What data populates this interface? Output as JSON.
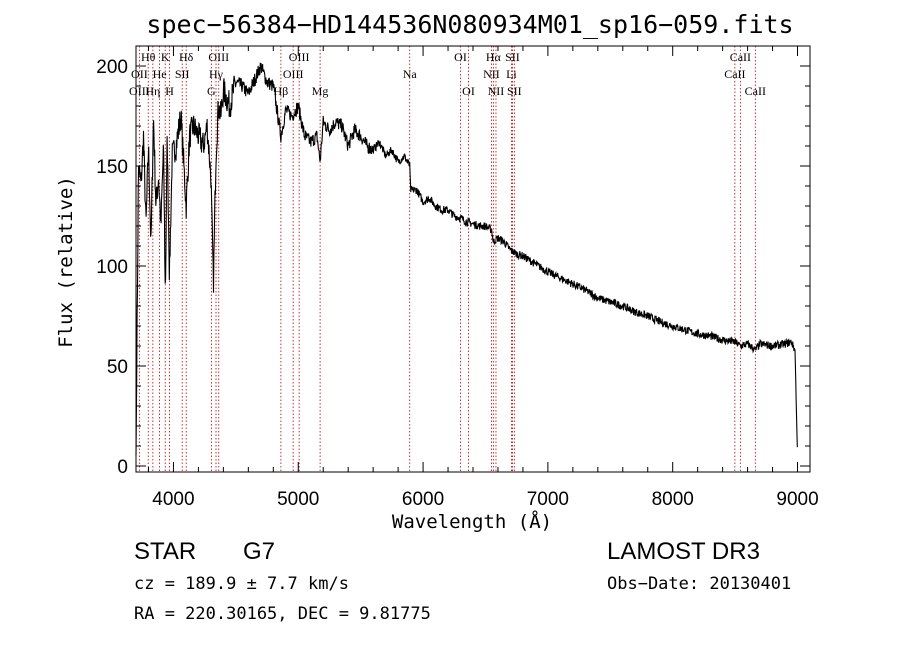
{
  "chart_data": {
    "type": "line",
    "title": "spec−56384−HD144536N080934M01_sp16−059.fits",
    "xlabel": "Wavelength (Å)",
    "ylabel": "Flux (relative)",
    "xlim": [
      3700,
      9100
    ],
    "ylim": [
      -3,
      210
    ],
    "xticks": [
      4000,
      5000,
      6000,
      7000,
      8000,
      9000
    ],
    "yticks": [
      0,
      50,
      100,
      150,
      200
    ],
    "grid": false,
    "series": [
      {
        "name": "spectrum",
        "x": [
          3700,
          3720,
          3740,
          3760,
          3780,
          3800,
          3820,
          3840,
          3860,
          3880,
          3900,
          3920,
          3935,
          3950,
          3968,
          3990,
          4020,
          4060,
          4102,
          4130,
          4160,
          4200,
          4240,
          4270,
          4300,
          4320,
          4340,
          4360,
          4380,
          4400,
          4450,
          4500,
          4550,
          4600,
          4650,
          4700,
          4750,
          4800,
          4861,
          4900,
          4950,
          5000,
          5050,
          5100,
          5150,
          5175,
          5200,
          5250,
          5300,
          5350,
          5400,
          5450,
          5500,
          5550,
          5600,
          5650,
          5700,
          5750,
          5800,
          5850,
          5893,
          5900,
          5950,
          6000,
          6050,
          6100,
          6150,
          6200,
          6250,
          6300,
          6350,
          6400,
          6450,
          6500,
          6550,
          6563,
          6600,
          6650,
          6700,
          6750,
          6800,
          6850,
          6900,
          6950,
          7000,
          7100,
          7200,
          7300,
          7400,
          7500,
          7600,
          7700,
          7800,
          7900,
          8000,
          8100,
          8200,
          8300,
          8400,
          8500,
          8542,
          8600,
          8662,
          8700,
          8800,
          8900,
          8950,
          8980,
          9000
        ],
        "values": [
          5,
          150,
          140,
          165,
          120,
          160,
          110,
          175,
          130,
          145,
          120,
          160,
          85,
          165,
          95,
          155,
          160,
          175,
          130,
          165,
          170,
          165,
          160,
          170,
          145,
          90,
          155,
          180,
          175,
          188,
          180,
          192,
          190,
          186,
          193,
          200,
          192,
          190,
          165,
          178,
          175,
          180,
          165,
          162,
          165,
          152,
          172,
          168,
          172,
          170,
          160,
          168,
          165,
          160,
          158,
          162,
          155,
          158,
          152,
          155,
          150,
          138,
          138,
          132,
          134,
          130,
          128,
          128,
          125,
          124,
          122,
          121,
          120,
          120,
          118,
          112,
          114,
          112,
          108,
          106,
          105,
          103,
          101,
          99,
          97,
          94,
          91,
          88,
          84,
          82,
          80,
          77,
          75,
          72,
          70,
          68,
          66,
          65,
          63,
          62,
          60,
          61,
          58,
          61,
          60,
          61,
          62,
          58,
          4
        ]
      }
    ],
    "spectral_lines": [
      {
        "label": "Hθ",
        "wl": 3798,
        "row": 1
      },
      {
        "label": "OII",
        "wl": 3727,
        "row": 2
      },
      {
        "label": "OIII",
        "wl": 3727,
        "row": 3
      },
      {
        "label": "He",
        "wl": 3889,
        "row": 2
      },
      {
        "label": "Hη",
        "wl": 3835,
        "row": 3
      },
      {
        "label": "K",
        "wl": 3934,
        "row": 1
      },
      {
        "label": "SII",
        "wl": 4070,
        "row": 2
      },
      {
        "label": "H",
        "wl": 3969,
        "row": 3
      },
      {
        "label": "Hδ",
        "wl": 4102,
        "row": 1
      },
      {
        "label": "OIII",
        "wl": 4363,
        "row": 1
      },
      {
        "label": "Hγ",
        "wl": 4341,
        "row": 2
      },
      {
        "label": "G",
        "wl": 4304,
        "row": 3
      },
      {
        "label": "OIII",
        "wl": 5007,
        "row": 1
      },
      {
        "label": "OIII",
        "wl": 4959,
        "row": 2
      },
      {
        "label": "Hβ",
        "wl": 4861,
        "row": 3
      },
      {
        "label": "Mg",
        "wl": 5175,
        "row": 3
      },
      {
        "label": "Na",
        "wl": 5893,
        "row": 2
      },
      {
        "label": "OI",
        "wl": 6300,
        "row": 1
      },
      {
        "label": "OI",
        "wl": 6364,
        "row": 3
      },
      {
        "label": "Hα",
        "wl": 6563,
        "row": 1
      },
      {
        "label": "NII",
        "wl": 6548,
        "row": 2
      },
      {
        "label": "NII",
        "wl": 6584,
        "row": 3
      },
      {
        "label": "SII",
        "wl": 6716,
        "row": 1
      },
      {
        "label": "Li",
        "wl": 6708,
        "row": 2
      },
      {
        "label": "SII",
        "wl": 6731,
        "row": 3
      },
      {
        "label": "CaII",
        "wl": 8542,
        "row": 1
      },
      {
        "label": "CaII",
        "wl": 8498,
        "row": 2
      },
      {
        "label": "CaII",
        "wl": 8662,
        "row": 3
      }
    ]
  },
  "info": {
    "class_label": "STAR",
    "subclass": "G7",
    "survey": "LAMOST DR3",
    "cz": "cz = 189.9 ± 7.7 km/s",
    "obs_date": "Obs−Date: 20130401",
    "coords": "RA = 220.30165, DEC =    9.81775"
  }
}
